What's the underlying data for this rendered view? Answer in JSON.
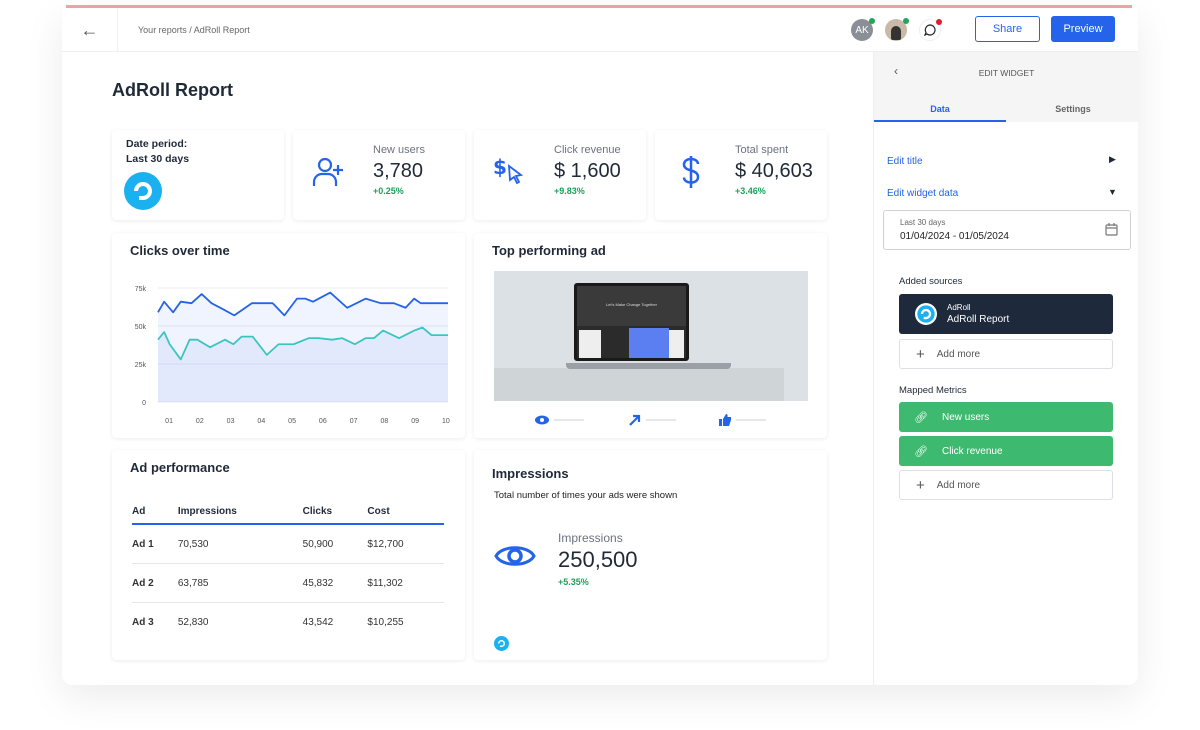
{
  "header": {
    "breadcrumb": "Your reports / AdRoll Report",
    "avatar_initials": "AK",
    "share": "Share",
    "preview": "Preview"
  },
  "page": {
    "title": "AdRoll Report"
  },
  "kpis": {
    "date": {
      "label": "Date period:",
      "value": "Last 30 days"
    },
    "items": [
      {
        "label": "New users",
        "value": "3,780",
        "delta": "+0.25%",
        "icon": "user-plus-icon"
      },
      {
        "label": "Click revenue",
        "value": "$ 1,600",
        "delta": "+9.83%",
        "icon": "dollar-cursor-icon"
      },
      {
        "label": "Total spent",
        "value": "$ 40,603",
        "delta": "+3.46%",
        "icon": "dollar-icon"
      }
    ]
  },
  "clicks": {
    "title": "Clicks over time"
  },
  "chart_data": {
    "type": "area",
    "title": "Clicks over time",
    "x_ticks": [
      "01",
      "02",
      "03",
      "04",
      "05",
      "06",
      "07",
      "08",
      "09",
      "10"
    ],
    "y_ticks": [
      "0",
      "25k",
      "50k",
      "75k"
    ],
    "ylim": [
      0,
      75000
    ],
    "xlim": [
      0.64,
      10.07
    ],
    "grid": true,
    "series": [
      {
        "color": "#2563eb",
        "x": [
          0.64,
          0.84,
          1.13,
          1.38,
          1.73,
          2.06,
          2.38,
          2.76,
          3.12,
          3.69,
          4.37,
          4.75,
          5.16,
          5.43,
          5.68,
          6.24,
          6.79,
          7.39,
          7.88,
          8.31,
          8.69,
          8.97,
          9.18,
          9.62,
          10.07
        ],
        "y": [
          59000,
          66000,
          59000,
          66000,
          65000,
          71000,
          65000,
          61000,
          57000,
          65000,
          65000,
          57000,
          68000,
          68000,
          66000,
          72000,
          62000,
          68000,
          65000,
          65000,
          62000,
          68000,
          65000,
          65000,
          65000
        ]
      },
      {
        "color": "#3cc5c0",
        "x": [
          0.64,
          0.84,
          1.02,
          1.38,
          1.67,
          1.92,
          2.33,
          2.82,
          3.09,
          3.36,
          3.72,
          4.18,
          4.56,
          5.05,
          5.54,
          5.86,
          6.3,
          6.63,
          7.04,
          7.39,
          7.66,
          7.96,
          8.48,
          8.97,
          9.24,
          9.53,
          10.07
        ],
        "y": [
          41000,
          46000,
          38000,
          28000,
          41000,
          41000,
          36000,
          41000,
          38000,
          43000,
          43000,
          31000,
          38000,
          38000,
          42000,
          42000,
          41000,
          42000,
          38000,
          42000,
          42000,
          47000,
          42000,
          47000,
          49000,
          44000,
          44000
        ]
      }
    ]
  },
  "top_ad": {
    "title": "Top performing ad",
    "screen_headline": "Let's Make Change Together"
  },
  "ad_performance": {
    "title": "Ad performance",
    "columns": [
      "Ad",
      "Impressions",
      "Clicks",
      "Cost"
    ],
    "rows": [
      [
        "Ad 1",
        "70,530",
        "50,900",
        "$12,700"
      ],
      [
        "Ad 2",
        "63,785",
        "45,832",
        "$11,302"
      ],
      [
        "Ad 3",
        "52,830",
        "43,542",
        "$10,255"
      ]
    ]
  },
  "impressions": {
    "title": "Impressions",
    "subtitle": "Total number of times your ads were shown",
    "label": "Impressions",
    "value": "250,500",
    "delta": "+5.35%"
  },
  "panel": {
    "title": "EDIT WIDGET",
    "tabs": [
      "Data",
      "Settings"
    ],
    "edit_title": "Edit title",
    "edit_widget_data": "Edit widget data",
    "date_label": "Last 30 days",
    "date_range": "01/04/2024 - 01/05/2024",
    "added_sources": "Added sources",
    "source": {
      "name": "AdRoll",
      "report": "AdRoll Report"
    },
    "add_more": "Add more",
    "mapped_metrics": "Mapped Metrics",
    "metrics": [
      "New users",
      "Click revenue"
    ]
  },
  "colors": {
    "accent": "#2563eb",
    "green": "#3dba6f",
    "navy": "#1e2a3b",
    "adroll": "#1bb0f0",
    "teal": "#3cc5c0"
  }
}
